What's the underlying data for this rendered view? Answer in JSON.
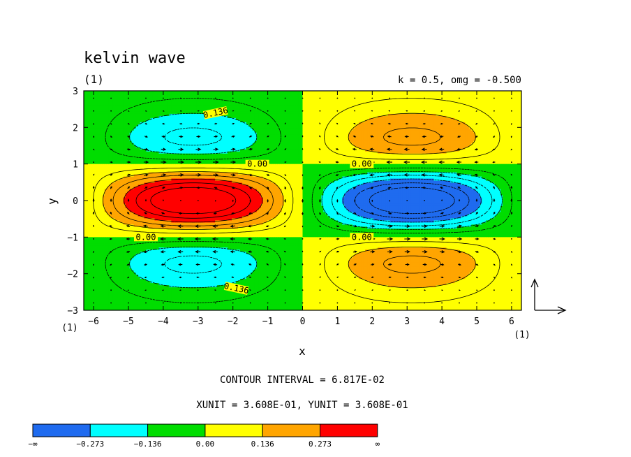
{
  "chart_data": {
    "type": "heatmap",
    "title": "kelvin wave",
    "panel_label": "(1)",
    "params_text": "k = 0.5, omg = -0.500",
    "xlabel": "x",
    "ylabel": "y",
    "x_axis_label_corner": "(1)",
    "x_axis_label_right": "(1)",
    "xlim": [
      -6.283,
      6.283
    ],
    "ylim": [
      -3,
      3
    ],
    "xticks": [
      -6,
      -5,
      -4,
      -3,
      -2,
      -1,
      0,
      1,
      2,
      3,
      4,
      5,
      6
    ],
    "yticks": [
      -3,
      -2,
      -1,
      0,
      1,
      2,
      3
    ],
    "field": "sin(0.5*x) * exp(-y^2/2) * (y^2 - 1) * 0.5",
    "contour_interval": 0.06817,
    "contour_labels": [
      "0.136",
      "0.00",
      "0.00",
      "0.00",
      "0.00",
      "0.136"
    ],
    "contour_interval_text": "CONTOUR INTERVAL = 6.817E-02",
    "units_text": "XUNIT = 3.608E-01, YUNIT = 3.608E-01",
    "vectors": "u = -sin(0.5*x)*exp(-y^2/2)*y, v = cos(0.5*x)*exp(-y^2/2)*(y^2-1)",
    "colorbar": {
      "boundaries": [
        "-∞",
        "-0.273",
        "-0.136",
        "0.00",
        "0.136",
        "0.273",
        "∞"
      ],
      "colors": [
        "#1f6bef",
        "#00ffff",
        "#00dd00",
        "#ffff00",
        "#ffa500",
        "#ff0000"
      ]
    }
  }
}
